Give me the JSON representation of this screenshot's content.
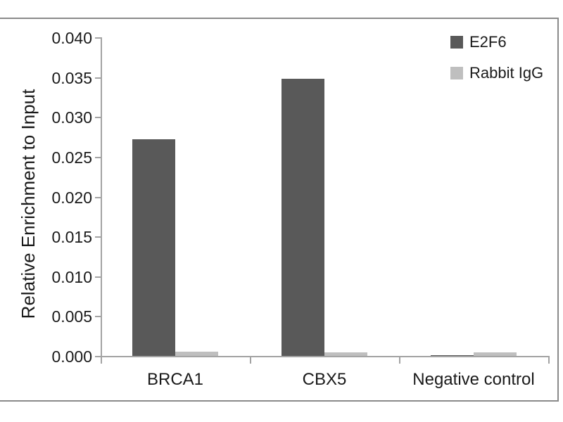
{
  "chart_data": {
    "type": "bar",
    "title": "",
    "xlabel": "",
    "ylabel": "Relative Enrichment to Input",
    "categories": [
      "BRCA1",
      "CBX5",
      "Negative control"
    ],
    "series": [
      {
        "name": "E2F6",
        "color": "#595959",
        "values": [
          0.0272,
          0.0348,
          0.0001
        ]
      },
      {
        "name": "Rabbit IgG",
        "color": "#bfbfbf",
        "values": [
          0.0005,
          0.0004,
          0.0004
        ]
      }
    ],
    "ylim": [
      0,
      0.04
    ],
    "ytick_step": 0.005,
    "ytick_labels": [
      "0.000",
      "0.005",
      "0.010",
      "0.015",
      "0.020",
      "0.025",
      "0.030",
      "0.035",
      "0.040"
    ],
    "grid": false,
    "legend_position": "top-right"
  },
  "colors": {
    "axis": "#a3a3a3",
    "frame": "#8a8a8a",
    "text": "#1a1a1a",
    "background": "#ffffff"
  }
}
